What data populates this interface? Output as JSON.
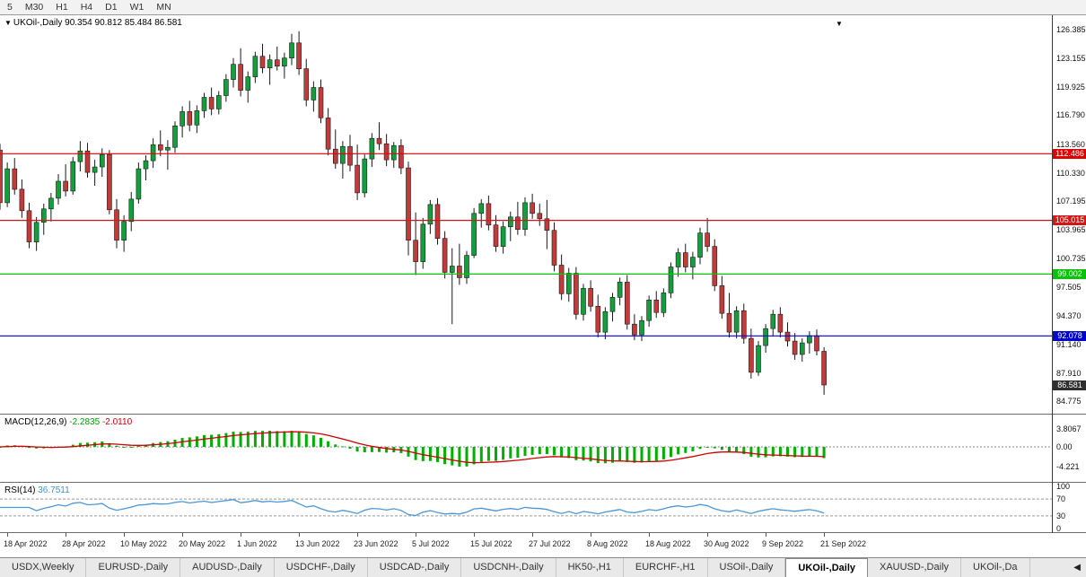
{
  "toolbar": {
    "timeframes": [
      "5",
      "M30",
      "H1",
      "H4",
      "D1",
      "W1",
      "MN"
    ]
  },
  "chart": {
    "symbol_title": "UKOil-,Daily",
    "ohlc_text": "90.354 90.812 85.484 86.581",
    "dropdown_icon": "▼",
    "shift_marker_icon": "▼",
    "price_axis_labels": [
      "126.385",
      "123.155",
      "119.925",
      "116.790",
      "113.560",
      "110.330",
      "107.195",
      "103.965",
      "100.735",
      "97.505",
      "94.370",
      "91.140",
      "87.910",
      "84.775"
    ],
    "levels": [
      {
        "price": 112.486,
        "label": "112.486",
        "color": "#e00000"
      },
      {
        "price": 105.015,
        "label": "105.015",
        "color": "#d01818"
      },
      {
        "price": 99.002,
        "label": "99.002",
        "color": "#00c400"
      },
      {
        "price": 92.078,
        "label": "92.078",
        "color": "#0000d0"
      }
    ],
    "last_price": {
      "price": 86.581,
      "label": "86.581",
      "color": "#2f2f2f"
    },
    "candle_colors": {
      "up": "#149e3c",
      "down": "#c23a3a",
      "outline": "#1a1a1a"
    }
  },
  "macd": {
    "label": "MACD(12,26,9)",
    "value_main": "-2.2835",
    "value_signal": "-2.0110",
    "scale_top": "3.8067",
    "scale_zero": "0.00",
    "scale_bottom": "-4.221",
    "histogram_color": "#00ae00",
    "signal_color": "#cc0000"
  },
  "rsi": {
    "label": "RSI(14)",
    "value": "36.7511",
    "scale": [
      "100",
      "70",
      "30",
      "0"
    ],
    "upper_level": 70,
    "lower_level": 30,
    "line_color": "#4a97d8"
  },
  "time_axis": [
    "18 Apr 2022",
    "28 Apr 2022",
    "10 May 2022",
    "20 May 2022",
    "1 Jun 2022",
    "13 Jun 2022",
    "23 Jun 2022",
    "5 Jul 2022",
    "15 Jul 2022",
    "27 Jul 2022",
    "8 Aug 2022",
    "18 Aug 2022",
    "30 Aug 2022",
    "9 Sep 2022",
    "21 Sep 2022"
  ],
  "tabbar": {
    "scroll_icon": "◀",
    "tabs": [
      {
        "label": "USDX,Weekly",
        "active": false
      },
      {
        "label": "EURUSD-,Daily",
        "active": false
      },
      {
        "label": "AUDUSD-,Daily",
        "active": false
      },
      {
        "label": "USDCHF-,Daily",
        "active": false
      },
      {
        "label": "USDCAD-,Daily",
        "active": false
      },
      {
        "label": "USDCNH-,Daily",
        "active": false
      },
      {
        "label": "HK50-,H1",
        "active": false
      },
      {
        "label": "EURCHF-,H1",
        "active": false
      },
      {
        "label": "USOil-,Daily",
        "active": false
      },
      {
        "label": "UKOil-,Daily",
        "active": true
      },
      {
        "label": "XAUUSD-,Daily",
        "active": false
      },
      {
        "label": "UKOil-,Da",
        "active": false
      }
    ]
  },
  "chart_data": {
    "type": "candlestick",
    "symbol": "UKOil-",
    "timeframe": "Daily",
    "title": "UKOil-,Daily 90.354 90.812 85.484 86.581",
    "y_axis_range": [
      84.775,
      126.385
    ],
    "x_tick_labels": [
      "18 Apr 2022",
      "28 Apr 2022",
      "10 May 2022",
      "20 May 2022",
      "1 Jun 2022",
      "13 Jun 2022",
      "23 Jun 2022",
      "5 Jul 2022",
      "15 Jul 2022",
      "27 Jul 2022",
      "8 Aug 2022",
      "18 Aug 2022",
      "30 Aug 2022",
      "9 Sep 2022",
      "21 Sep 2022"
    ],
    "ticks_every_n_candles": 8,
    "horizontal_lines": [
      112.486,
      105.015,
      99.002,
      92.078
    ],
    "last_candle_ohlc": [
      90.354,
      90.812,
      85.484,
      86.581
    ],
    "indicators": [
      {
        "name": "MACD",
        "params": [
          12,
          26,
          9
        ],
        "values": [
          -2.2835,
          -2.011
        ]
      },
      {
        "name": "RSI",
        "params": [
          14
        ],
        "values": [
          36.7511
        ]
      }
    ],
    "ohlc": [
      [
        112.9,
        113.6,
        106.2,
        107.0
      ],
      [
        107.0,
        111.5,
        106.5,
        110.8
      ],
      [
        110.8,
        112.0,
        107.9,
        108.5
      ],
      [
        108.5,
        109.6,
        105.3,
        106.1
      ],
      [
        106.1,
        107.0,
        101.9,
        102.6
      ],
      [
        102.6,
        105.4,
        101.6,
        104.8
      ],
      [
        104.8,
        106.9,
        103.4,
        106.3
      ],
      [
        106.3,
        108.1,
        104.9,
        107.5
      ],
      [
        107.5,
        110.2,
        106.8,
        109.4
      ],
      [
        109.4,
        111.3,
        107.7,
        108.3
      ],
      [
        108.3,
        112.1,
        107.9,
        111.6
      ],
      [
        111.6,
        113.9,
        110.5,
        112.8
      ],
      [
        112.8,
        113.7,
        109.8,
        110.4
      ],
      [
        110.4,
        111.8,
        108.9,
        111.0
      ],
      [
        111.0,
        113.1,
        109.9,
        112.4
      ],
      [
        112.4,
        112.9,
        105.7,
        106.2
      ],
      [
        106.2,
        107.4,
        101.9,
        102.8
      ],
      [
        102.8,
        105.6,
        101.5,
        104.9
      ],
      [
        104.9,
        108.2,
        103.8,
        107.4
      ],
      [
        107.4,
        111.5,
        106.9,
        110.8
      ],
      [
        110.8,
        112.3,
        109.5,
        111.7
      ],
      [
        111.7,
        114.2,
        110.9,
        113.5
      ],
      [
        113.5,
        115.1,
        112.2,
        112.9
      ],
      [
        112.9,
        114.0,
        110.7,
        113.2
      ],
      [
        113.2,
        116.1,
        112.6,
        115.6
      ],
      [
        115.6,
        117.8,
        114.3,
        117.2
      ],
      [
        117.2,
        118.4,
        115.0,
        115.7
      ],
      [
        115.7,
        117.9,
        114.8,
        117.3
      ],
      [
        117.3,
        119.3,
        116.5,
        118.8
      ],
      [
        118.8,
        119.9,
        116.8,
        117.5
      ],
      [
        117.5,
        119.5,
        116.9,
        119.0
      ],
      [
        119.0,
        121.4,
        118.3,
        120.8
      ],
      [
        120.8,
        123.2,
        119.9,
        122.5
      ],
      [
        122.5,
        124.3,
        118.9,
        119.6
      ],
      [
        119.6,
        121.7,
        118.2,
        121.1
      ],
      [
        121.1,
        123.9,
        120.4,
        123.4
      ],
      [
        123.4,
        124.8,
        121.5,
        122.1
      ],
      [
        122.1,
        123.6,
        120.2,
        123.0
      ],
      [
        123.0,
        124.5,
        121.8,
        122.3
      ],
      [
        122.3,
        123.8,
        120.9,
        123.2
      ],
      [
        123.2,
        125.9,
        122.4,
        124.9
      ],
      [
        124.9,
        126.2,
        121.3,
        122.0
      ],
      [
        122.0,
        123.1,
        117.8,
        118.5
      ],
      [
        118.5,
        120.6,
        117.2,
        119.9
      ],
      [
        119.9,
        120.8,
        115.9,
        116.5
      ],
      [
        116.5,
        117.6,
        112.3,
        113.0
      ],
      [
        113.0,
        115.2,
        110.8,
        111.4
      ],
      [
        111.4,
        113.9,
        109.7,
        113.3
      ],
      [
        113.3,
        114.6,
        110.5,
        111.2
      ],
      [
        111.2,
        113.5,
        107.3,
        108.1
      ],
      [
        108.1,
        112.4,
        107.6,
        111.9
      ],
      [
        111.9,
        114.8,
        111.0,
        114.2
      ],
      [
        114.2,
        116.0,
        112.9,
        113.6
      ],
      [
        113.6,
        114.7,
        111.1,
        111.8
      ],
      [
        111.8,
        113.8,
        110.9,
        113.4
      ],
      [
        113.4,
        114.1,
        110.2,
        110.9
      ],
      [
        110.9,
        111.6,
        101.1,
        102.8
      ],
      [
        102.8,
        105.9,
        98.9,
        100.4
      ],
      [
        100.4,
        105.3,
        99.6,
        104.6
      ],
      [
        104.6,
        107.3,
        103.5,
        106.8
      ],
      [
        106.8,
        107.5,
        102.3,
        103.0
      ],
      [
        103.0,
        103.8,
        98.5,
        99.2
      ],
      [
        99.2,
        101.9,
        93.4,
        99.9
      ],
      [
        99.9,
        102.4,
        97.8,
        98.6
      ],
      [
        98.6,
        101.6,
        97.9,
        101.1
      ],
      [
        101.1,
        106.4,
        100.8,
        105.8
      ],
      [
        105.8,
        107.4,
        104.2,
        106.9
      ],
      [
        106.9,
        107.8,
        103.9,
        104.5
      ],
      [
        104.5,
        105.6,
        101.5,
        102.1
      ],
      [
        102.1,
        104.9,
        101.3,
        104.3
      ],
      [
        104.3,
        106.0,
        102.7,
        105.4
      ],
      [
        105.4,
        107.1,
        103.4,
        104.0
      ],
      [
        104.0,
        107.6,
        103.3,
        107.0
      ],
      [
        107.0,
        108.0,
        105.2,
        105.8
      ],
      [
        105.8,
        106.9,
        104.4,
        105.2
      ],
      [
        105.2,
        107.3,
        101.8,
        103.9
      ],
      [
        103.9,
        104.8,
        99.3,
        100.0
      ],
      [
        100.0,
        101.2,
        96.1,
        96.8
      ],
      [
        96.8,
        99.7,
        95.9,
        99.1
      ],
      [
        99.1,
        99.8,
        93.9,
        94.5
      ],
      [
        94.5,
        97.9,
        93.8,
        97.4
      ],
      [
        97.4,
        98.3,
        94.8,
        95.4
      ],
      [
        95.4,
        96.7,
        91.9,
        92.5
      ],
      [
        92.5,
        95.3,
        91.7,
        94.8
      ],
      [
        94.8,
        96.9,
        93.7,
        96.4
      ],
      [
        96.4,
        98.6,
        95.5,
        98.1
      ],
      [
        98.1,
        98.9,
        92.8,
        93.4
      ],
      [
        93.4,
        94.5,
        91.6,
        92.2
      ],
      [
        92.2,
        94.3,
        91.5,
        93.8
      ],
      [
        93.8,
        96.6,
        93.1,
        96.1
      ],
      [
        96.1,
        97.1,
        94.1,
        94.7
      ],
      [
        94.7,
        97.4,
        94.2,
        96.9
      ],
      [
        96.9,
        100.3,
        96.3,
        99.8
      ],
      [
        99.8,
        101.9,
        98.7,
        101.4
      ],
      [
        101.4,
        102.4,
        99.2,
        99.8
      ],
      [
        99.8,
        101.5,
        98.4,
        100.9
      ],
      [
        100.9,
        104.2,
        100.1,
        103.6
      ],
      [
        103.6,
        105.3,
        101.5,
        102.1
      ],
      [
        102.1,
        102.9,
        97.1,
        97.7
      ],
      [
        97.7,
        98.8,
        94.0,
        94.6
      ],
      [
        94.6,
        96.9,
        91.9,
        92.5
      ],
      [
        92.5,
        95.4,
        91.8,
        94.9
      ],
      [
        94.9,
        95.7,
        91.2,
        91.8
      ],
      [
        91.8,
        92.9,
        87.3,
        88.0
      ],
      [
        88.0,
        91.5,
        87.6,
        91.0
      ],
      [
        91.0,
        93.4,
        90.2,
        92.9
      ],
      [
        92.9,
        95.0,
        92.1,
        94.5
      ],
      [
        94.5,
        95.3,
        91.9,
        92.5
      ],
      [
        92.5,
        93.6,
        90.9,
        91.5
      ],
      [
        91.5,
        92.4,
        89.4,
        90.0
      ],
      [
        90.0,
        91.8,
        89.2,
        91.3
      ],
      [
        91.3,
        92.6,
        90.1,
        92.1
      ],
      [
        92.1,
        92.8,
        89.9,
        90.4
      ],
      [
        90.354,
        90.812,
        85.484,
        86.581
      ]
    ]
  }
}
